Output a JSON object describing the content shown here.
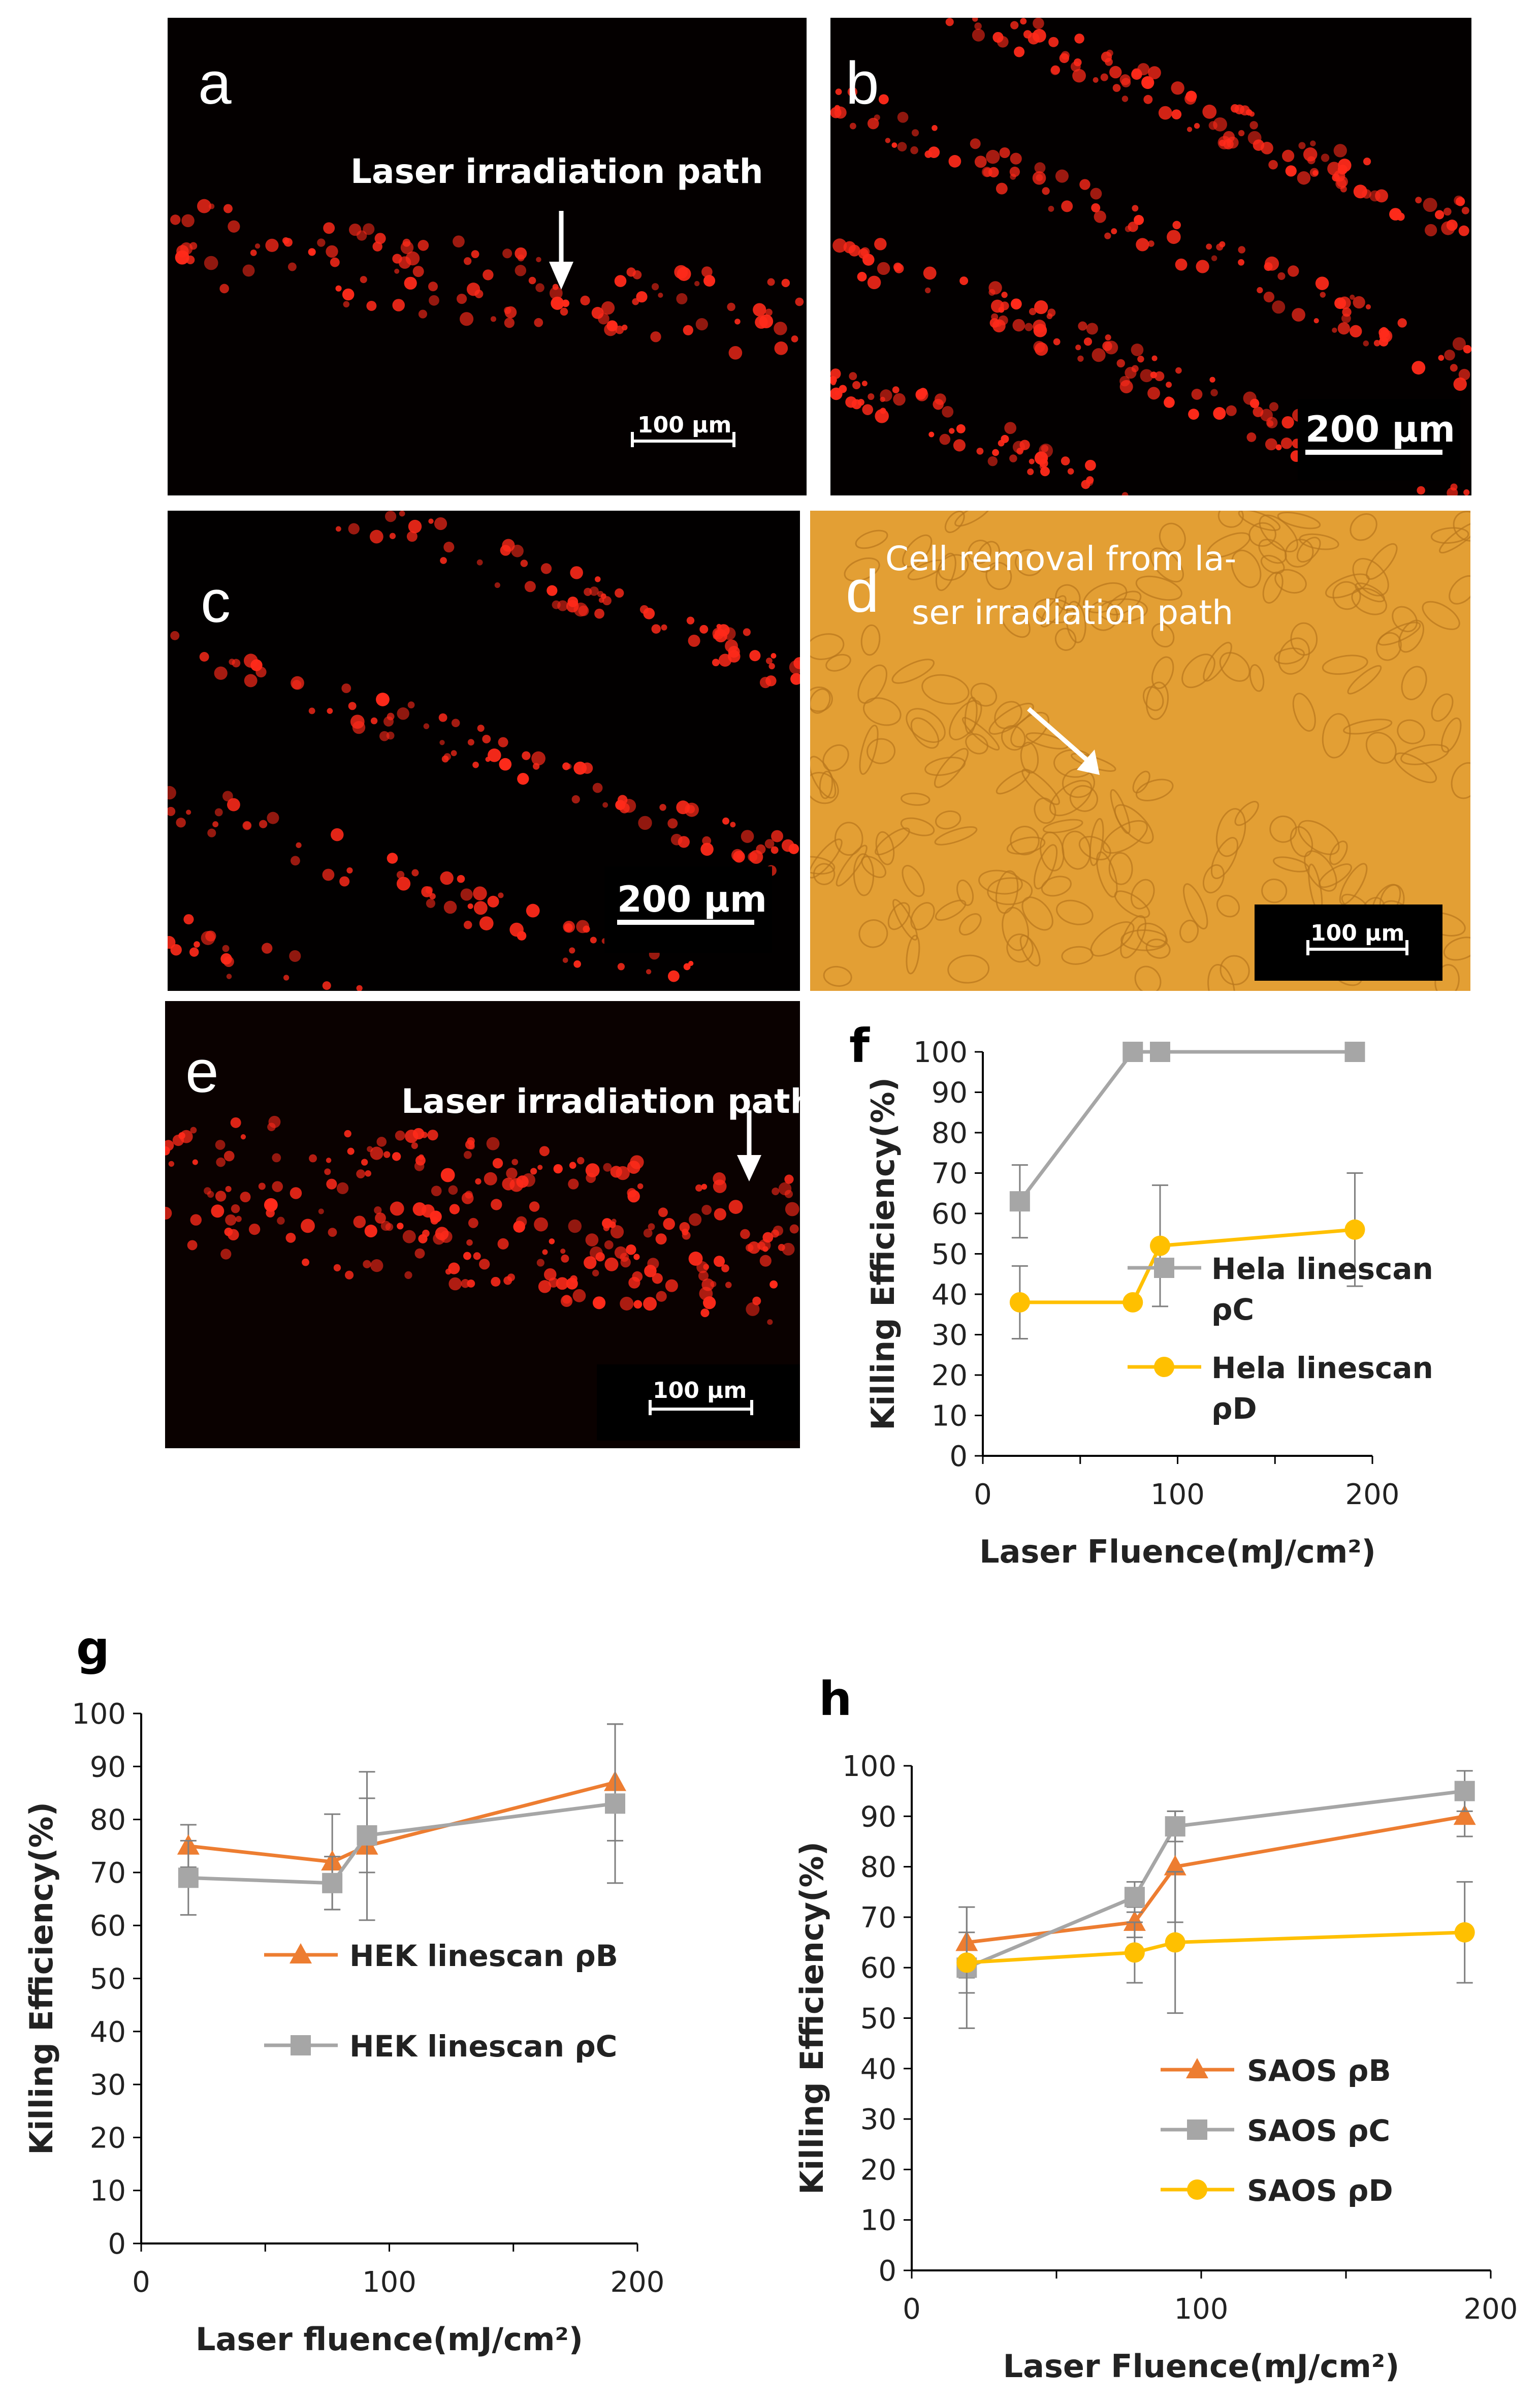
{
  "panels": {
    "a": {
      "label": "a",
      "caption": "Laser irradiation path",
      "scale": "100 µm"
    },
    "b": {
      "label": "b",
      "scale": "200 µm"
    },
    "c": {
      "label": "c",
      "scale": "200 µm"
    },
    "d": {
      "label": "d",
      "caption_line1": "Cell removal from la-",
      "caption_line2": "ser irradiation path",
      "scale": "100 µm"
    },
    "e": {
      "label": "e",
      "caption": "Laser irradiation path",
      "scale": "100 µm"
    }
  },
  "colors": {
    "gray": "#a6a6a6",
    "yellow": "#ffc000",
    "orange": "#ed7d31",
    "cell_red": "#ff2a1a",
    "bright_field": "#e8a63a"
  },
  "chart_data": [
    {
      "id": "f",
      "panel_label": "f",
      "type": "line",
      "xlabel": "Laser Fluence(mJ/cm²)",
      "ylabel": "Killing Efficiency(%)",
      "xlim": [
        0,
        200
      ],
      "ylim": [
        0,
        100
      ],
      "xticks": [
        0,
        100,
        200
      ],
      "yticks": [
        0,
        10,
        20,
        30,
        40,
        50,
        60,
        70,
        80,
        90,
        100
      ],
      "legend_position": "center-right",
      "series": [
        {
          "name_line1": "Hela linescan",
          "name_line2": "ρC",
          "color": "#a6a6a6",
          "marker": "square",
          "x": [
            19,
            77,
            91,
            191
          ],
          "y": [
            63,
            100,
            100,
            100
          ],
          "err": [
            9,
            0,
            0,
            0
          ]
        },
        {
          "name_line1": "Hela linescan",
          "name_line2": "ρD",
          "color": "#ffc000",
          "marker": "circle",
          "x": [
            19,
            77,
            91,
            191
          ],
          "y": [
            38,
            38,
            52,
            56
          ],
          "err": [
            9,
            0,
            15,
            14
          ]
        }
      ]
    },
    {
      "id": "g",
      "panel_label": "g",
      "type": "line",
      "xlabel": "Laser fluence(mJ/cm²)",
      "ylabel": "Killing Efficiency(%)",
      "xlim": [
        0,
        200
      ],
      "ylim": [
        0,
        100
      ],
      "xticks": [
        0,
        100,
        200
      ],
      "yticks": [
        0,
        10,
        20,
        30,
        40,
        50,
        60,
        70,
        80,
        90,
        100
      ],
      "legend_position": "center-left",
      "series": [
        {
          "name": "HEK linescan ρB",
          "color": "#ed7d31",
          "marker": "triangle",
          "x": [
            19,
            77,
            91,
            191
          ],
          "y": [
            75,
            72,
            75,
            87
          ],
          "err": [
            4,
            9,
            14,
            11
          ]
        },
        {
          "name": "HEK linescan ρC",
          "color": "#a6a6a6",
          "marker": "square",
          "x": [
            19,
            77,
            91,
            191
          ],
          "y": [
            69,
            68,
            77,
            83
          ],
          "err": [
            7,
            5,
            7,
            15
          ]
        }
      ]
    },
    {
      "id": "h",
      "panel_label": "h",
      "type": "line",
      "xlabel": "Laser Fluence(mJ/cm²)",
      "ylabel": "Killing Efficiency(%)",
      "xlim": [
        0,
        200
      ],
      "ylim": [
        0,
        100
      ],
      "xticks": [
        0,
        100,
        200
      ],
      "yticks": [
        0,
        10,
        20,
        30,
        40,
        50,
        60,
        70,
        80,
        90,
        100
      ],
      "legend_position": "bottom-center",
      "series": [
        {
          "name": "SAOS ρB",
          "color": "#ed7d31",
          "marker": "triangle",
          "x": [
            19,
            77,
            91,
            191
          ],
          "y": [
            65,
            69,
            80,
            90
          ],
          "err": [
            7,
            3,
            11,
            4
          ]
        },
        {
          "name": "SAOS ρC",
          "color": "#a6a6a6",
          "marker": "square",
          "x": [
            19,
            77,
            91,
            191
          ],
          "y": [
            60,
            74,
            88,
            95
          ],
          "err": [
            12,
            3,
            3,
            4
          ]
        },
        {
          "name": "SAOS ρD",
          "color": "#ffc000",
          "marker": "circle",
          "x": [
            19,
            77,
            91,
            191
          ],
          "y": [
            61,
            63,
            65,
            67
          ],
          "err": [
            6,
            6,
            14,
            10
          ]
        }
      ]
    }
  ]
}
